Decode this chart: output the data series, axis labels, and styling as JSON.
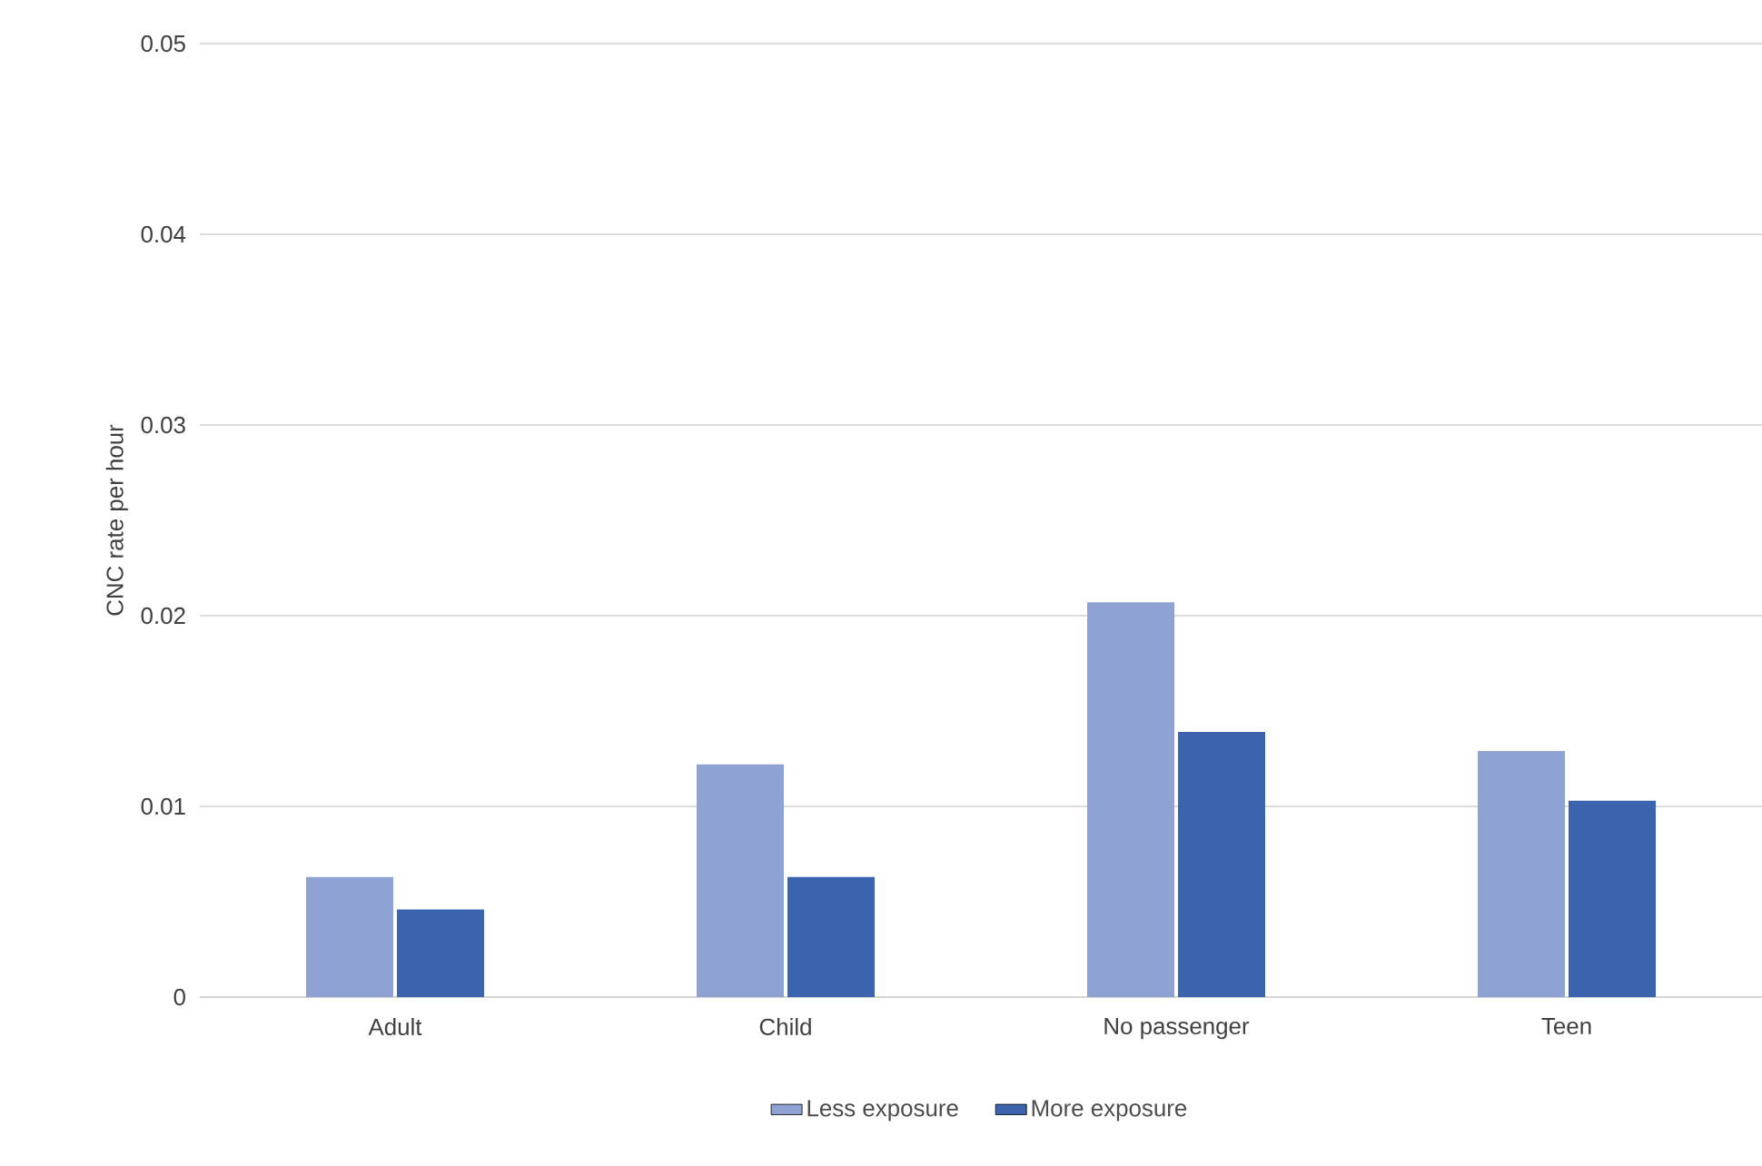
{
  "chart_data": {
    "type": "bar",
    "ylabel": "CNC rate per hour",
    "categories": [
      "Adult",
      "Child",
      "No passenger",
      "Teen"
    ],
    "series": [
      {
        "name": "Less exposure",
        "color": "#8fa2d4",
        "values": [
          0.0063,
          0.0122,
          0.0207,
          0.0129
        ]
      },
      {
        "name": "More exposure",
        "color": "#3c64ae",
        "values": [
          0.0046,
          0.0063,
          0.0139,
          0.0103
        ]
      }
    ],
    "ylim": [
      0,
      0.05
    ],
    "yticks": [
      0,
      0.01,
      0.02,
      0.03,
      0.04,
      0.05
    ],
    "grid": "y",
    "legend": "bottom"
  }
}
